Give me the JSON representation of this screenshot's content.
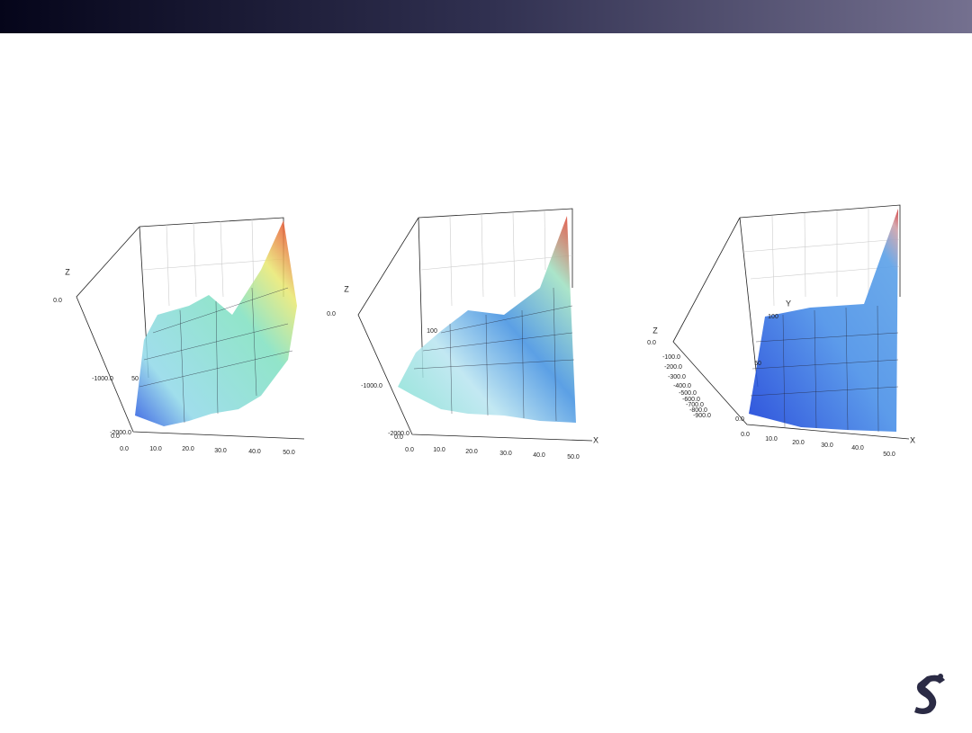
{
  "plots": [
    {
      "z_label": "Z",
      "z_ticks": [
        "0.0",
        "-1000.0",
        "-2000.0"
      ],
      "y_ticks": [
        "0.0",
        "50"
      ],
      "x_ticks": [
        "0.0",
        "10.0",
        "20.0",
        "30.0",
        "40.0",
        "50.0"
      ]
    },
    {
      "z_label": "Z",
      "z_ticks": [
        "0.0",
        "-1000.0",
        "-2000.0"
      ],
      "y_ticks": [
        "0.0",
        "100"
      ],
      "x_ticks": [
        "0.0",
        "10.0",
        "20.0",
        "30.0",
        "40.0",
        "50.0"
      ],
      "x_label": "X"
    },
    {
      "z_label": "Z",
      "z_ticks": [
        "0.0",
        "-100.0",
        "-200.0",
        "-300.0",
        "-400.0",
        "-500.0",
        "-600.0",
        "-700.0",
        "-800.0",
        "-900.0"
      ],
      "y_label": "Y",
      "y_ticks": [
        "0.0",
        "50",
        "100"
      ],
      "x_ticks": [
        "0.0",
        "10.0",
        "20.0",
        "30.0",
        "40.0",
        "50.0"
      ],
      "x_label": "X"
    }
  ]
}
